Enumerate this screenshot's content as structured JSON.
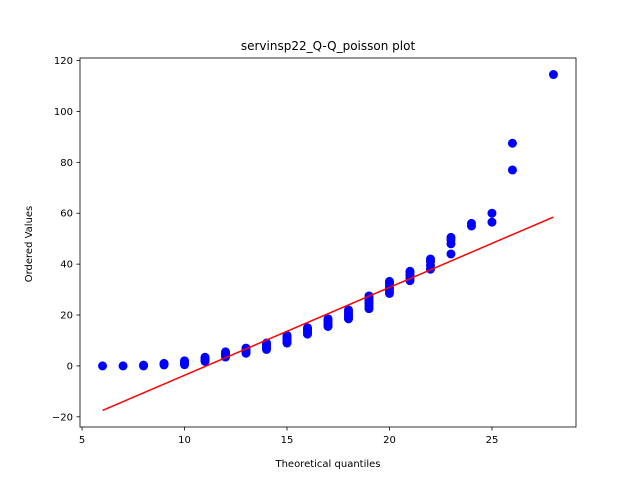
{
  "chart_data": {
    "type": "scatter",
    "title": "servinsp22_Q-Q_poisson plot",
    "xlabel": "Theoretical quantiles",
    "ylabel": "Ordered Values",
    "xlim": [
      4.9,
      29.1
    ],
    "ylim": [
      -24,
      121
    ],
    "xticks": [
      5,
      10,
      15,
      20,
      25
    ],
    "yticks": [
      -20,
      0,
      20,
      40,
      60,
      80,
      100,
      120
    ],
    "grid": false,
    "legend": "none",
    "series": [
      {
        "kind": "points",
        "color": "#0000ff",
        "points": [
          [
            6,
            0.0
          ],
          [
            7,
            0.0
          ],
          [
            8,
            0.0
          ],
          [
            8,
            0.3
          ],
          [
            9,
            0.4
          ],
          [
            9,
            0.8
          ],
          [
            9,
            1.0
          ],
          [
            10,
            0.5
          ],
          [
            10,
            1.0
          ],
          [
            10,
            1.5
          ],
          [
            10,
            2.0
          ],
          [
            11,
            1.8
          ],
          [
            11,
            2.3
          ],
          [
            11,
            2.8
          ],
          [
            11,
            3.4
          ],
          [
            12,
            3.5
          ],
          [
            12,
            4.0
          ],
          [
            12,
            4.5
          ],
          [
            12,
            5.0
          ],
          [
            12,
            5.5
          ],
          [
            13,
            5.0
          ],
          [
            13,
            5.5
          ],
          [
            13,
            6.0
          ],
          [
            13,
            6.5
          ],
          [
            13,
            7.0
          ],
          [
            14,
            6.5
          ],
          [
            14,
            7.0
          ],
          [
            14,
            7.5
          ],
          [
            14,
            8.0
          ],
          [
            14,
            8.5
          ],
          [
            14,
            9.0
          ],
          [
            15,
            9.0
          ],
          [
            15,
            9.5
          ],
          [
            15,
            10.0
          ],
          [
            15,
            10.5
          ],
          [
            15,
            11.0
          ],
          [
            15,
            11.5
          ],
          [
            15,
            12.0
          ],
          [
            16,
            12.5
          ],
          [
            16,
            13.0
          ],
          [
            16,
            13.5
          ],
          [
            16,
            14.0
          ],
          [
            16,
            14.5
          ],
          [
            16,
            15.0
          ],
          [
            17,
            15.5
          ],
          [
            17,
            16.0
          ],
          [
            17,
            16.5
          ],
          [
            17,
            17.0
          ],
          [
            17,
            17.5
          ],
          [
            17,
            18.0
          ],
          [
            17,
            18.5
          ],
          [
            18,
            18.5
          ],
          [
            18,
            19.0
          ],
          [
            18,
            19.8
          ],
          [
            18,
            20.5
          ],
          [
            18,
            21.2
          ],
          [
            18,
            22.0
          ],
          [
            19,
            22.5
          ],
          [
            19,
            23.5
          ],
          [
            19,
            24.5
          ],
          [
            19,
            25.5
          ],
          [
            19,
            26.5
          ],
          [
            19,
            27.5
          ],
          [
            20,
            28.5
          ],
          [
            20,
            29.5
          ],
          [
            20,
            30.5
          ],
          [
            20,
            31.5
          ],
          [
            20,
            32.5
          ],
          [
            20,
            33.2
          ],
          [
            21,
            33.5
          ],
          [
            21,
            34.5
          ],
          [
            21,
            35.5
          ],
          [
            21,
            36.5
          ],
          [
            21,
            37.2
          ],
          [
            22,
            38.0
          ],
          [
            22,
            39.5
          ],
          [
            22,
            41.0
          ],
          [
            22,
            42.0
          ],
          [
            23,
            44.0
          ],
          [
            23,
            48.0
          ],
          [
            23,
            49.5
          ],
          [
            23,
            50.5
          ],
          [
            24,
            55.0
          ],
          [
            24,
            56.0
          ],
          [
            25,
            56.5
          ],
          [
            25,
            60.0
          ],
          [
            26,
            77.0
          ],
          [
            26,
            87.5
          ],
          [
            28,
            114.5
          ]
        ]
      },
      {
        "kind": "fit-line",
        "color": "#ff0000",
        "x": [
          6,
          28
        ],
        "y": [
          -17.5,
          58.5
        ]
      }
    ]
  }
}
